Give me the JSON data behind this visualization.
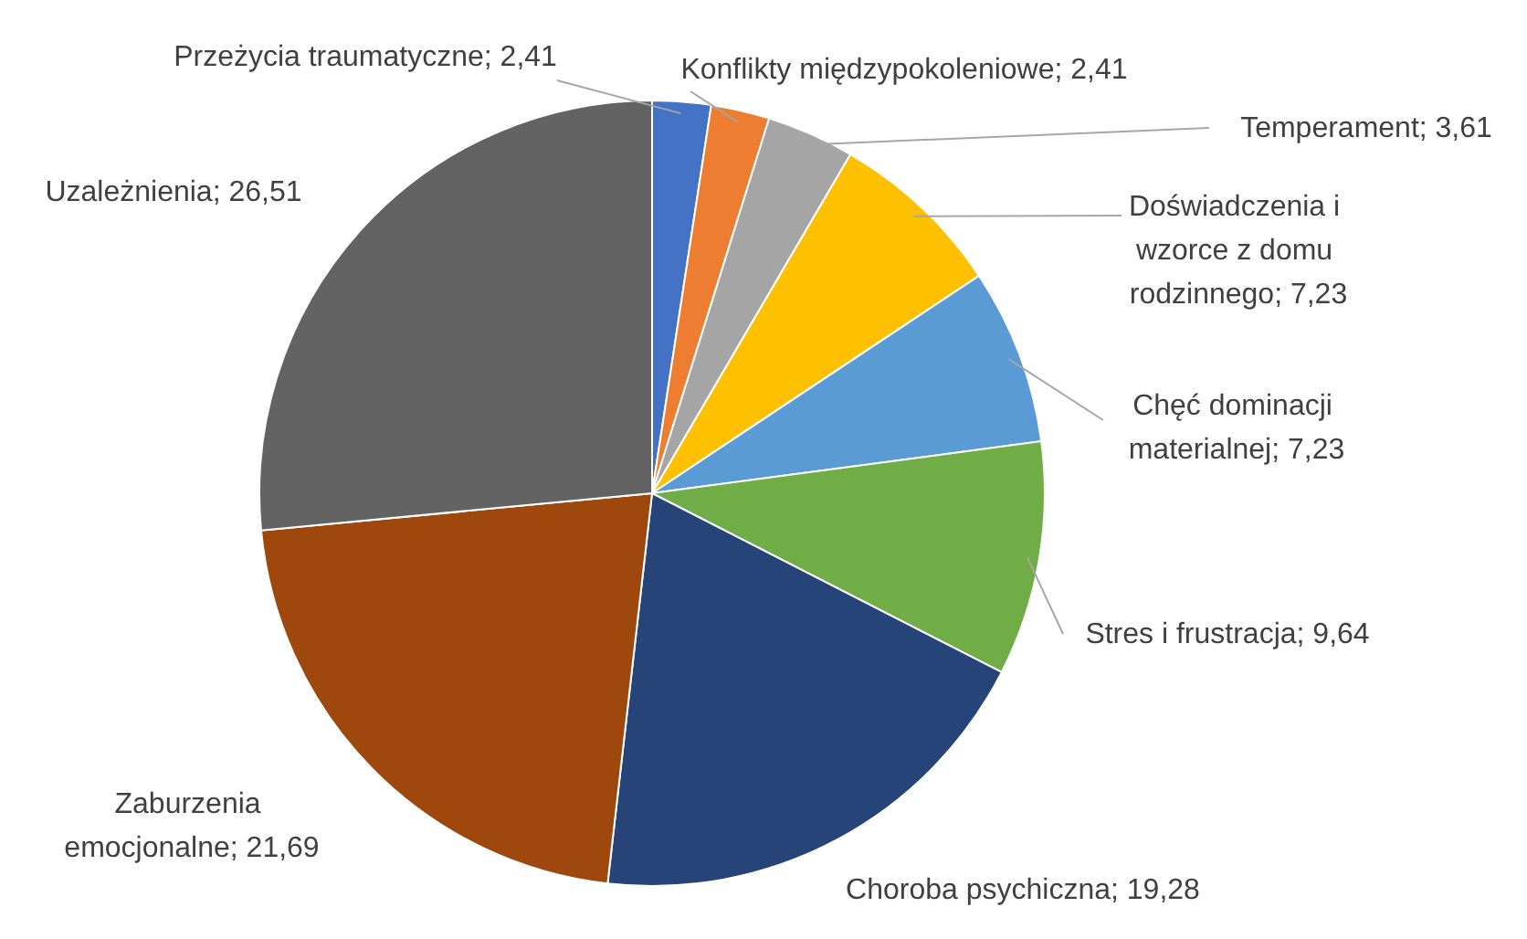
{
  "chart_data": {
    "type": "pie",
    "categories": [
      "Przeżycia traumatyczne",
      "Konflikty międzypokoleniowe",
      "Temperament",
      "Doświadczenia i wzorce z domu rodzinnego",
      "Chęć dominacji materialnej",
      "Stres i frustracja",
      "Choroba psychiczna",
      "Zaburzenia emocjonalne",
      "Uzależnienia"
    ],
    "values": [
      2.41,
      2.41,
      3.61,
      7.23,
      7.23,
      9.64,
      19.28,
      21.69,
      26.51
    ],
    "value_labels": [
      "2,41",
      "2,41",
      "3,61",
      "7,23",
      "7,23",
      "9,64",
      "19,28",
      "21,69",
      "26,51"
    ],
    "colors": [
      "#4472c4",
      "#ed7d31",
      "#a5a5a5",
      "#ffc000",
      "#5b9bd5",
      "#70ad47",
      "#264478",
      "#9e480e",
      "#636363"
    ]
  }
}
